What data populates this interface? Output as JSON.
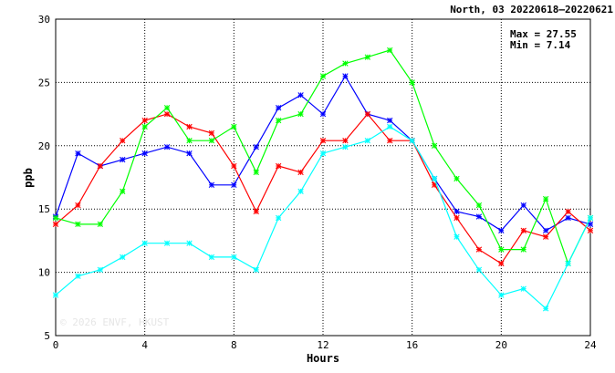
{
  "chart_data": {
    "type": "line",
    "title": "North, 03 20220618–20220621",
    "xlabel": "Hours",
    "ylabel": "ppb",
    "xlim": [
      0,
      24
    ],
    "ylim": [
      5,
      30
    ],
    "xticks": [
      0,
      4,
      8,
      12,
      16,
      20,
      24
    ],
    "yticks": [
      5,
      10,
      15,
      20,
      25,
      30
    ],
    "grid": "dotted",
    "max_label": "Max = 27.55",
    "min_label": "Min =  7.14",
    "watermark": "© 2026  ENVF, HKUST",
    "x": [
      0,
      1,
      2,
      3,
      4,
      5,
      6,
      7,
      8,
      9,
      10,
      11,
      12,
      13,
      14,
      15,
      16,
      17,
      18,
      19,
      20,
      21,
      22,
      23,
      24
    ],
    "series": [
      {
        "color": "#0000ff",
        "values": [
          14.4,
          19.4,
          18.4,
          18.9,
          19.4,
          19.9,
          19.4,
          16.9,
          16.9,
          19.9,
          23.0,
          24.0,
          22.5,
          25.5,
          22.5,
          22.0,
          20.4,
          17.4,
          14.8,
          14.4,
          13.3,
          15.3,
          13.3,
          14.3,
          13.8
        ]
      },
      {
        "color": "#ff0000",
        "values": [
          13.8,
          15.3,
          18.4,
          20.4,
          22.0,
          22.5,
          21.5,
          21.0,
          18.4,
          14.8,
          18.4,
          17.9,
          20.4,
          20.4,
          22.5,
          20.4,
          20.4,
          16.9,
          14.3,
          11.8,
          10.7,
          13.3,
          12.8,
          14.8,
          13.3
        ]
      },
      {
        "color": "#00ff00",
        "values": [
          14.3,
          13.8,
          13.8,
          16.4,
          21.5,
          23.0,
          20.4,
          20.4,
          21.5,
          17.9,
          22.0,
          22.5,
          25.5,
          26.5,
          27.0,
          27.55,
          25.0,
          20.0,
          17.4,
          15.3,
          11.8,
          11.8,
          15.8,
          10.7,
          14.3
        ]
      },
      {
        "color": "#00ffff",
        "values": [
          8.2,
          9.7,
          10.2,
          11.2,
          12.3,
          12.3,
          12.3,
          11.2,
          11.2,
          10.2,
          14.3,
          16.4,
          19.4,
          19.9,
          20.4,
          21.5,
          20.4,
          17.4,
          12.8,
          10.2,
          8.2,
          8.7,
          7.14,
          10.7,
          14.3
        ]
      }
    ]
  }
}
